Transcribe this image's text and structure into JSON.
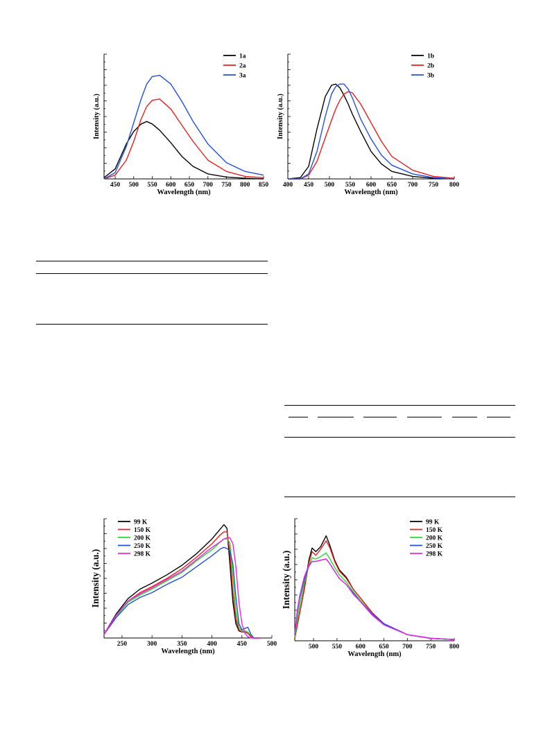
{
  "chart_data": [
    {
      "type": "line",
      "xlabel": "Wavelength (nm)",
      "ylabel": "Intensity (a.u.)",
      "xlim": [
        420,
        850
      ],
      "xticks": [
        450,
        500,
        550,
        600,
        650,
        700,
        750,
        800,
        850
      ],
      "ylim": [
        0,
        1
      ],
      "legend": "top-right",
      "x": [
        420,
        450,
        480,
        500,
        520,
        535,
        550,
        570,
        600,
        630,
        660,
        700,
        750,
        800,
        850
      ],
      "series": [
        {
          "name": "1a",
          "color": "#000000",
          "values": [
            0.01,
            0.08,
            0.28,
            0.38,
            0.44,
            0.46,
            0.44,
            0.39,
            0.29,
            0.18,
            0.1,
            0.04,
            0.015,
            0.005,
            0.0
          ]
        },
        {
          "name": "2a",
          "color": "#ee1c1c",
          "values": [
            0.0,
            0.03,
            0.15,
            0.3,
            0.48,
            0.58,
            0.63,
            0.64,
            0.56,
            0.43,
            0.3,
            0.15,
            0.06,
            0.02,
            0.01
          ]
        },
        {
          "name": "3a",
          "color": "#1f4fe6",
          "values": [
            0.0,
            0.05,
            0.26,
            0.45,
            0.64,
            0.76,
            0.82,
            0.83,
            0.76,
            0.62,
            0.46,
            0.28,
            0.13,
            0.06,
            0.03
          ]
        }
      ]
    },
    {
      "type": "line",
      "xlabel": "Wavelength (nm)",
      "ylabel": "Intensity (a.u.)",
      "xlim": [
        400,
        800
      ],
      "xticks": [
        400,
        450,
        500,
        550,
        600,
        650,
        700,
        750,
        800
      ],
      "ylim": [
        0,
        1
      ],
      "legend": "top-right",
      "x": [
        400,
        430,
        450,
        470,
        490,
        505,
        515,
        525,
        535,
        545,
        555,
        575,
        600,
        625,
        650,
        700,
        750,
        800
      ],
      "series": [
        {
          "name": "1b",
          "color": "#000000",
          "values": [
            0.0,
            0.01,
            0.1,
            0.4,
            0.66,
            0.75,
            0.76,
            0.73,
            0.67,
            0.6,
            0.52,
            0.38,
            0.22,
            0.12,
            0.06,
            0.02,
            0.005,
            0.0
          ]
        },
        {
          "name": "2b",
          "color": "#ee1c1c",
          "values": [
            0.0,
            0.0,
            0.03,
            0.14,
            0.33,
            0.47,
            0.56,
            0.63,
            0.68,
            0.7,
            0.69,
            0.6,
            0.45,
            0.3,
            0.18,
            0.07,
            0.02,
            0.005
          ]
        },
        {
          "name": "3b",
          "color": "#1f4fe6",
          "values": [
            0.0,
            0.0,
            0.04,
            0.22,
            0.5,
            0.68,
            0.74,
            0.76,
            0.76,
            0.72,
            0.65,
            0.48,
            0.32,
            0.19,
            0.11,
            0.04,
            0.01,
            0.0
          ]
        }
      ]
    },
    {
      "type": "line",
      "xlabel": "Wavelength (nm)",
      "ylabel": "Intensity (a.u.)",
      "xlim": [
        220,
        500
      ],
      "xticks": [
        250,
        300,
        350,
        400,
        450,
        500
      ],
      "ylim": [
        0,
        1
      ],
      "legend": "top-left",
      "x": [
        220,
        240,
        260,
        280,
        300,
        325,
        350,
        375,
        400,
        415,
        420,
        425,
        430,
        435,
        440,
        445,
        450,
        455,
        460,
        465,
        470,
        480
      ],
      "series": [
        {
          "name": "99 K",
          "color": "#000000",
          "values": [
            0.03,
            0.2,
            0.33,
            0.41,
            0.46,
            0.53,
            0.61,
            0.71,
            0.83,
            0.92,
            0.95,
            0.92,
            0.62,
            0.3,
            0.12,
            0.06,
            0.05,
            0.05,
            0.04,
            0.01,
            0.0,
            0.0
          ]
        },
        {
          "name": "150 K",
          "color": "#ee1c1c",
          "values": [
            0.03,
            0.19,
            0.31,
            0.38,
            0.43,
            0.5,
            0.58,
            0.68,
            0.79,
            0.87,
            0.89,
            0.89,
            0.72,
            0.38,
            0.16,
            0.07,
            0.05,
            0.05,
            0.04,
            0.01,
            0.0,
            0.0
          ]
        },
        {
          "name": "200 K",
          "color": "#22dd22",
          "values": [
            0.03,
            0.18,
            0.3,
            0.36,
            0.41,
            0.48,
            0.55,
            0.65,
            0.74,
            0.81,
            0.83,
            0.83,
            0.8,
            0.52,
            0.22,
            0.09,
            0.06,
            0.06,
            0.05,
            0.02,
            0.0,
            0.0
          ]
        },
        {
          "name": "250 K",
          "color": "#1f4fe6",
          "values": [
            0.03,
            0.17,
            0.28,
            0.34,
            0.38,
            0.45,
            0.51,
            0.6,
            0.69,
            0.75,
            0.76,
            0.75,
            0.73,
            0.62,
            0.34,
            0.12,
            0.07,
            0.08,
            0.09,
            0.03,
            0.0,
            0.0
          ]
        },
        {
          "name": "298 K",
          "color": "#ee22ee",
          "values": [
            0.03,
            0.19,
            0.31,
            0.37,
            0.42,
            0.49,
            0.56,
            0.66,
            0.76,
            0.81,
            0.83,
            0.84,
            0.84,
            0.79,
            0.6,
            0.3,
            0.12,
            0.04,
            0.01,
            0.0,
            0.0,
            0.0
          ]
        }
      ]
    },
    {
      "type": "line",
      "xlabel": "Wavelength (nm)",
      "ylabel": "Intensity (a.u.)",
      "xlim": [
        460,
        800
      ],
      "xticks": [
        500,
        550,
        600,
        650,
        700,
        750,
        800
      ],
      "ylim": [
        0,
        1
      ],
      "legend": "top-right",
      "x": [
        460,
        465,
        470,
        480,
        490,
        497,
        505,
        515,
        527,
        535,
        545,
        555,
        570,
        585,
        600,
        625,
        650,
        700,
        750,
        800
      ],
      "series": [
        {
          "name": "99 K",
          "color": "#000000",
          "values": [
            0.02,
            0.12,
            0.22,
            0.42,
            0.66,
            0.76,
            0.73,
            0.77,
            0.86,
            0.78,
            0.66,
            0.58,
            0.52,
            0.42,
            0.35,
            0.23,
            0.14,
            0.05,
            0.02,
            0.01
          ]
        },
        {
          "name": "150 K",
          "color": "#ee1c1c",
          "values": [
            0.02,
            0.12,
            0.22,
            0.41,
            0.64,
            0.73,
            0.7,
            0.75,
            0.82,
            0.76,
            0.65,
            0.57,
            0.51,
            0.42,
            0.35,
            0.23,
            0.14,
            0.05,
            0.02,
            0.01
          ]
        },
        {
          "name": "200 K",
          "color": "#22dd22",
          "values": [
            0.03,
            0.16,
            0.28,
            0.47,
            0.62,
            0.68,
            0.67,
            0.69,
            0.72,
            0.67,
            0.6,
            0.54,
            0.48,
            0.4,
            0.33,
            0.22,
            0.14,
            0.05,
            0.02,
            0.01
          ]
        },
        {
          "name": "250 K",
          "color": "#1f4fe6",
          "values": [
            0.05,
            0.22,
            0.34,
            0.5,
            0.61,
            0.65,
            0.65,
            0.66,
            0.67,
            0.63,
            0.57,
            0.51,
            0.46,
            0.39,
            0.32,
            0.22,
            0.14,
            0.05,
            0.02,
            0.01
          ]
        },
        {
          "name": "298 K",
          "color": "#ee22ee",
          "values": [
            0.06,
            0.24,
            0.36,
            0.52,
            0.62,
            0.65,
            0.65,
            0.66,
            0.67,
            0.63,
            0.57,
            0.51,
            0.46,
            0.38,
            0.32,
            0.21,
            0.13,
            0.05,
            0.02,
            0.01
          ]
        }
      ]
    }
  ]
}
